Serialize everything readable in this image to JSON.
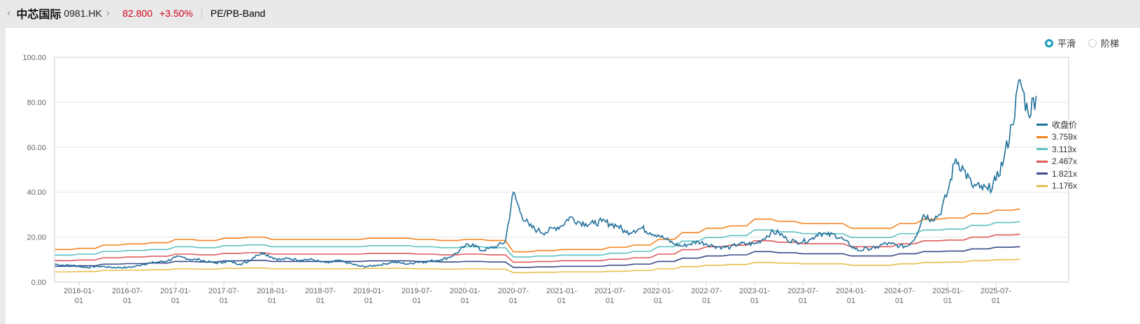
{
  "header": {
    "back_icon": "chevron-left",
    "name": "中芯国际",
    "code": "0981.HK",
    "price": "82.800",
    "change": "+3.50%",
    "view": "PE/PB-Band"
  },
  "options": [
    {
      "label": "平滑",
      "selected": true
    },
    {
      "label": "阶梯",
      "selected": false
    }
  ],
  "chart_data": {
    "type": "line",
    "title": "PE/PB-Band",
    "ylim": [
      0,
      100
    ],
    "yticks": [
      "0.00",
      "20.00",
      "40.00",
      "60.00",
      "80.00",
      "100.00"
    ],
    "xticks": [
      "2016-01-01",
      "2016-07-01",
      "2017-01-01",
      "2017-07-01",
      "2018-01-01",
      "2018-07-01",
      "2019-01-01",
      "2019-07-01",
      "2020-01-01",
      "2020-07-01",
      "2021-01-01",
      "2021-07-01",
      "2022-01-01",
      "2022-07-01",
      "2023-01-01",
      "2023-07-01",
      "2024-01-01",
      "2024-07-01",
      "2025-01-01",
      "2025-07-01"
    ],
    "close": {
      "name": "收盘价",
      "color": "#1f6f9b",
      "start": "2015-10",
      "freq": "monthly",
      "values": [
        8,
        7.5,
        7.5,
        7,
        6.5,
        7,
        7,
        6.5,
        6.5,
        6.5,
        7,
        8,
        8.5,
        9,
        9.5,
        11,
        11,
        10,
        10,
        9,
        8.5,
        9,
        9,
        8,
        9,
        12,
        13,
        11,
        10,
        10.5,
        10,
        10,
        10,
        9,
        8.5,
        9.5,
        9,
        8,
        7,
        7,
        7.5,
        8,
        9,
        8.5,
        8,
        9,
        9,
        9.5,
        10,
        11,
        13,
        16,
        17,
        14,
        15,
        16,
        18,
        40,
        30,
        25,
        23,
        22,
        24,
        25,
        29,
        27,
        26,
        26,
        27,
        26,
        25,
        22,
        23,
        24,
        22,
        21,
        19,
        17,
        16,
        17,
        18,
        17,
        16,
        15.5,
        15.5,
        17,
        17,
        17,
        19,
        22,
        22,
        19,
        18,
        18,
        19,
        22,
        21,
        21,
        19,
        16,
        14,
        15,
        15,
        17,
        17,
        16,
        16,
        20,
        30,
        28,
        30,
        40,
        55,
        50,
        43,
        42,
        41,
        45,
        55,
        70,
        90,
        75,
        82.8
      ]
    },
    "bvps": {
      "start": "2015-10",
      "freq": "quarterly",
      "values": [
        3.86,
        3.99,
        4.39,
        4.52,
        4.66,
        5.05,
        4.92,
        5.19,
        5.32,
        5.05,
        5.05,
        5.05,
        5.05,
        5.19,
        5.19,
        5.05,
        4.92,
        5.05,
        4.92,
        3.59,
        3.72,
        3.86,
        3.86,
        4.12,
        4.39,
        5.05,
        5.85,
        6.38,
        6.65,
        7.45,
        7.18,
        6.92,
        6.92,
        6.38,
        6.38,
        6.92,
        7.45,
        7.58,
        8.11,
        8.51,
        8.65
      ]
    },
    "bands": [
      {
        "name": "3.759x",
        "multiple": 3.759,
        "color": "#f5821f"
      },
      {
        "name": "3.113x",
        "multiple": 3.113,
        "color": "#5bc2c0"
      },
      {
        "name": "2.467x",
        "multiple": 2.467,
        "color": "#e05a5a"
      },
      {
        "name": "1.821x",
        "multiple": 1.821,
        "color": "#3b4a8a"
      },
      {
        "name": "1.176x",
        "multiple": 1.176,
        "color": "#e8be4a"
      }
    ],
    "legend_position": "right"
  }
}
